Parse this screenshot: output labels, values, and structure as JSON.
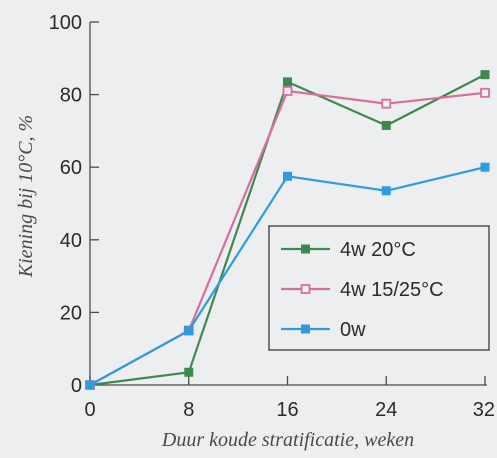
{
  "chart_data": {
    "type": "line",
    "title": "",
    "xlabel": "Duur koude stratificatie, weken",
    "ylabel": "Kiening bij 10°C, %",
    "x": [
      0,
      8,
      16,
      24,
      32
    ],
    "xticks": [
      "0",
      "8",
      "16",
      "24",
      "32"
    ],
    "yticks": [
      "0",
      "20",
      "40",
      "60",
      "80",
      "100"
    ],
    "xlim": [
      0,
      32
    ],
    "ylim": [
      0,
      100
    ],
    "grid": false,
    "legend_position": "lower-right",
    "series": [
      {
        "name": "4w 20°C",
        "values": [
          0,
          3.5,
          83.5,
          71.5,
          85.5
        ],
        "color": "#3e8a4e",
        "marker": "square"
      },
      {
        "name": "4w 15/25°C",
        "values": [
          0,
          15,
          81,
          77.5,
          80.5
        ],
        "color": "#d66f9c",
        "marker": "square-outline"
      },
      {
        "name": "0w",
        "values": [
          0,
          15,
          57.5,
          53.5,
          60
        ],
        "color": "#2f9be0",
        "marker": "square"
      }
    ]
  }
}
